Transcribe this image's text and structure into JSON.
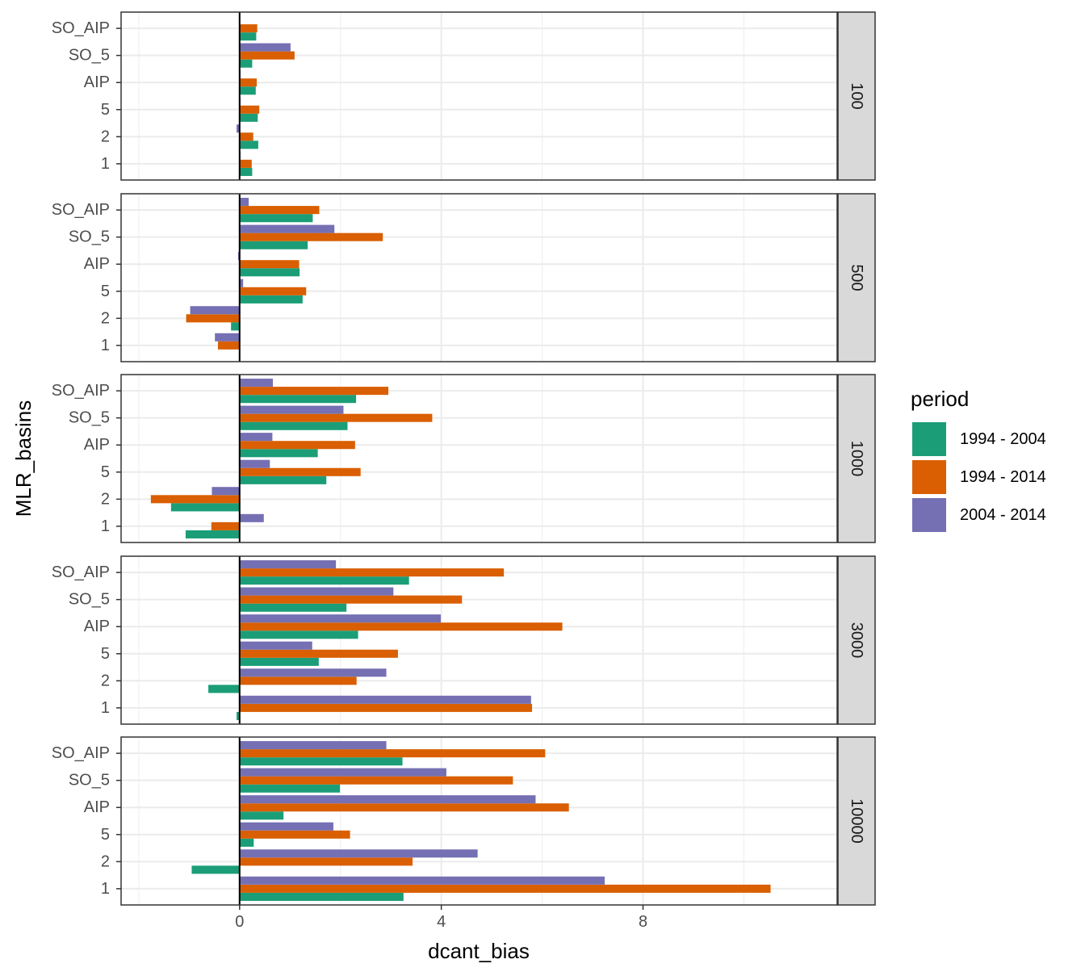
{
  "chart_data": {
    "type": "bar",
    "orientation": "horizontal",
    "xlabel": "dcant_bias",
    "ylabel": "MLR_basins",
    "xlim": [
      -2.35,
      11.85
    ],
    "xticks": [
      0,
      4,
      8
    ],
    "categories": [
      "1",
      "2",
      "5",
      "AIP",
      "SO_5",
      "SO_AIP"
    ],
    "grid": true,
    "zero_line": true,
    "legend": {
      "title": "period",
      "position": "right",
      "entries": [
        {
          "label": "1994 - 2004",
          "color": "#1B9E77"
        },
        {
          "label": "1994 - 2014",
          "color": "#D95F02"
        },
        {
          "label": "2004 - 2014",
          "color": "#7570B3"
        }
      ]
    },
    "panels": [
      {
        "label": "100",
        "series": [
          {
            "name": "1994 - 2004",
            "values": [
              0.25,
              0.37,
              0.36,
              0.32,
              0.25,
              0.33
            ]
          },
          {
            "name": "1994 - 2014",
            "values": [
              0.24,
              0.27,
              0.39,
              0.34,
              1.09,
              0.35
            ]
          },
          {
            "name": "2004 - 2014",
            "values": [
              0.02,
              -0.06,
              0.02,
              0.02,
              1.01,
              0.0
            ]
          }
        ]
      },
      {
        "label": "500",
        "series": [
          {
            "name": "1994 - 2004",
            "values": [
              0.0,
              -0.17,
              1.25,
              1.19,
              1.35,
              1.45
            ]
          },
          {
            "name": "1994 - 2014",
            "values": [
              -0.43,
              -1.06,
              1.32,
              1.18,
              2.84,
              1.58
            ]
          },
          {
            "name": "2004 - 2014",
            "values": [
              -0.49,
              -0.98,
              0.07,
              -0.03,
              1.88,
              0.18
            ]
          }
        ]
      },
      {
        "label": "1000",
        "series": [
          {
            "name": "1994 - 2004",
            "values": [
              -1.07,
              -1.36,
              1.72,
              1.55,
              2.14,
              2.31
            ]
          },
          {
            "name": "1994 - 2014",
            "values": [
              -0.56,
              -1.76,
              2.4,
              2.29,
              3.82,
              2.95
            ]
          },
          {
            "name": "2004 - 2014",
            "values": [
              0.48,
              -0.55,
              0.6,
              0.65,
              2.06,
              0.66
            ]
          }
        ]
      },
      {
        "label": "3000",
        "series": [
          {
            "name": "1994 - 2004",
            "values": [
              -0.06,
              -0.62,
              1.57,
              2.35,
              2.12,
              3.36
            ]
          },
          {
            "name": "1994 - 2014",
            "values": [
              5.8,
              2.32,
              3.14,
              6.4,
              4.41,
              5.24
            ]
          },
          {
            "name": "2004 - 2014",
            "values": [
              5.78,
              2.91,
              1.44,
              3.99,
              3.05,
              1.91
            ]
          }
        ]
      },
      {
        "label": "10000",
        "series": [
          {
            "name": "1994 - 2004",
            "values": [
              3.25,
              -0.95,
              0.28,
              0.87,
              1.99,
              3.23
            ]
          },
          {
            "name": "1994 - 2014",
            "values": [
              10.53,
              3.43,
              2.19,
              6.53,
              5.42,
              6.06
            ]
          },
          {
            "name": "2004 - 2014",
            "values": [
              7.24,
              4.72,
              1.86,
              5.87,
              4.1,
              2.91
            ]
          }
        ]
      }
    ]
  }
}
